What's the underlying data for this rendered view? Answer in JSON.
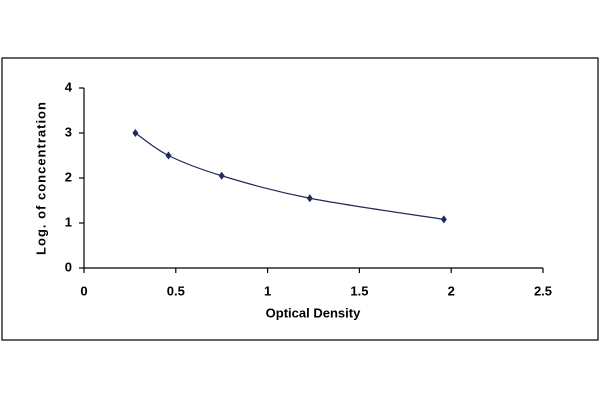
{
  "chart_data": {
    "type": "line",
    "xlabel": "Optical Density",
    "ylabel": "Log. of  concentration",
    "x": [
      0.28,
      0.46,
      0.75,
      1.23,
      1.96
    ],
    "values": [
      3.0,
      2.5,
      2.05,
      1.55,
      1.08
    ],
    "color": "#1f2a5a",
    "xlim": [
      0,
      2.5
    ],
    "ylim": [
      0,
      4
    ],
    "xticks": [
      0,
      0.5,
      1,
      1.5,
      2,
      2.5
    ],
    "yticks": [
      0,
      1,
      2,
      3,
      4
    ],
    "smooth": true
  }
}
